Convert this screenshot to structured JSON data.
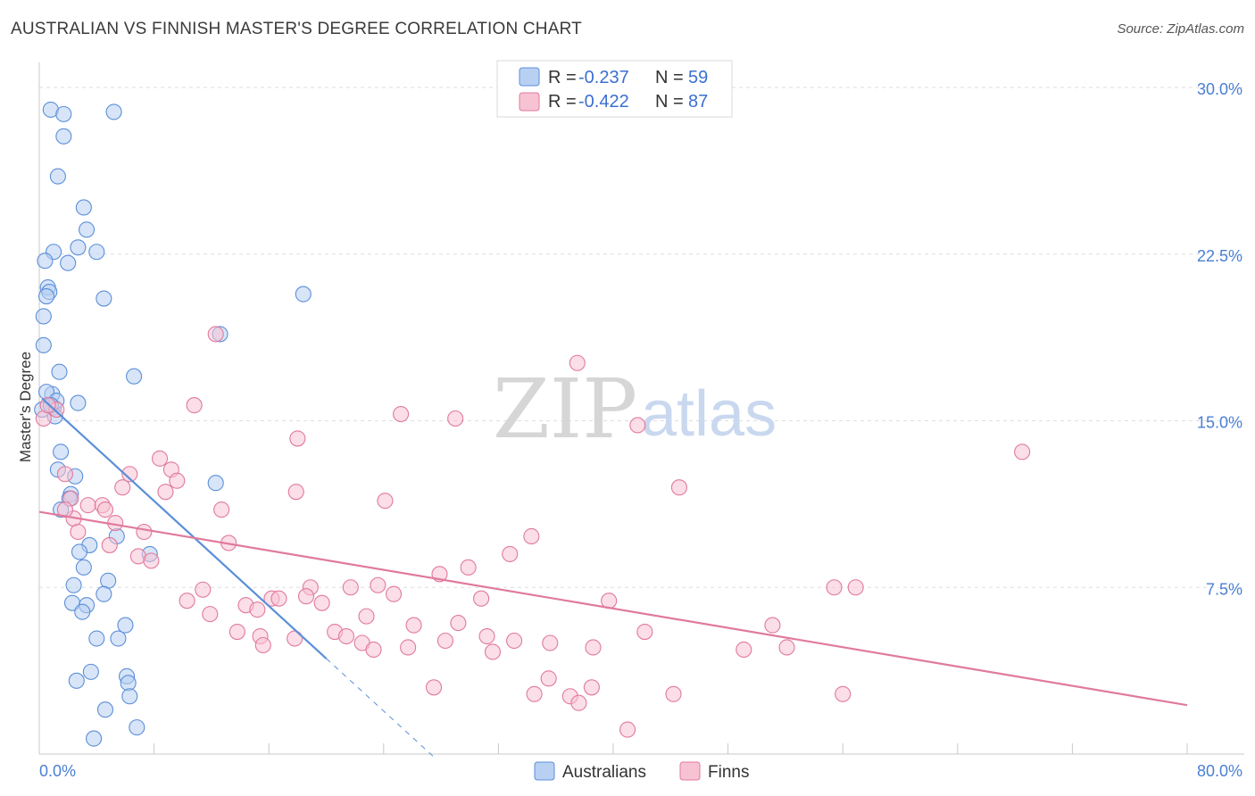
{
  "title": "AUSTRALIAN VS FINNISH MASTER'S DEGREE CORRELATION CHART",
  "source": "Source: ZipAtlas.com",
  "watermark": {
    "zip": "ZIP",
    "atlas": "atlas"
  },
  "legend": {
    "r_label": "R =",
    "n_label": "N =",
    "rows": [
      {
        "r": "-0.237",
        "n": "59",
        "color": "#5b8fd8",
        "fill": "#b8d0f2"
      },
      {
        "r": "-0.422",
        "n": "87",
        "color": "#e07a9c",
        "fill": "#f7c3d3"
      }
    ]
  },
  "chart_data": {
    "type": "scatter",
    "title": "AUSTRALIAN VS FINNISH MASTER'S DEGREE CORRELATION CHART",
    "xlabel": "",
    "ylabel": "Master's Degree",
    "xlim": [
      0,
      80
    ],
    "ylim": [
      0,
      30.7
    ],
    "x_tick_labels": [
      "0.0%",
      "80.0%"
    ],
    "y_ticks": [
      7.5,
      15.0,
      22.5,
      30.0
    ],
    "y_tick_labels": [
      "7.5%",
      "15.0%",
      "22.5%",
      "30.0%"
    ],
    "series": [
      {
        "name": "Australians",
        "color": "#5b8fd8",
        "fill": "#b8d0f2",
        "r": -0.237,
        "n": 59,
        "trend": {
          "x0": 0.2,
          "y0": 16.0,
          "x1": 20.0,
          "y1": 4.3,
          "dash_to_x": 27.5
        },
        "points": [
          [
            0.8,
            29.0
          ],
          [
            1.7,
            28.8
          ],
          [
            5.2,
            28.9
          ],
          [
            1.7,
            27.8
          ],
          [
            1.3,
            26.0
          ],
          [
            3.1,
            24.6
          ],
          [
            3.3,
            23.6
          ],
          [
            2.7,
            22.8
          ],
          [
            1.0,
            22.6
          ],
          [
            4.0,
            22.6
          ],
          [
            0.4,
            22.2
          ],
          [
            2.0,
            22.1
          ],
          [
            0.6,
            21.0
          ],
          [
            0.7,
            20.8
          ],
          [
            0.5,
            20.6
          ],
          [
            4.5,
            20.5
          ],
          [
            18.4,
            20.7
          ],
          [
            0.3,
            19.7
          ],
          [
            12.6,
            18.9
          ],
          [
            0.3,
            18.4
          ],
          [
            1.4,
            17.2
          ],
          [
            6.6,
            17.0
          ],
          [
            0.9,
            16.2
          ],
          [
            2.7,
            15.8
          ],
          [
            1.0,
            15.6
          ],
          [
            1.1,
            15.2
          ],
          [
            0.2,
            15.5
          ],
          [
            1.5,
            13.6
          ],
          [
            1.3,
            12.8
          ],
          [
            2.5,
            12.5
          ],
          [
            12.3,
            12.2
          ],
          [
            2.2,
            11.7
          ],
          [
            2.1,
            11.5
          ],
          [
            1.5,
            11.0
          ],
          [
            5.4,
            9.8
          ],
          [
            3.5,
            9.4
          ],
          [
            2.8,
            9.1
          ],
          [
            7.7,
            9.0
          ],
          [
            3.1,
            8.4
          ],
          [
            4.8,
            7.8
          ],
          [
            2.4,
            7.6
          ],
          [
            4.5,
            7.2
          ],
          [
            2.3,
            6.8
          ],
          [
            3.3,
            6.7
          ],
          [
            3.0,
            6.4
          ],
          [
            6.0,
            5.8
          ],
          [
            4.0,
            5.2
          ],
          [
            5.5,
            5.2
          ],
          [
            3.6,
            3.7
          ],
          [
            6.1,
            3.5
          ],
          [
            2.6,
            3.3
          ],
          [
            6.2,
            3.2
          ],
          [
            6.3,
            2.6
          ],
          [
            4.6,
            2.0
          ],
          [
            6.8,
            1.2
          ],
          [
            3.8,
            0.7
          ],
          [
            0.5,
            16.3
          ],
          [
            1.2,
            15.9
          ],
          [
            0.8,
            15.7
          ]
        ]
      },
      {
        "name": "Finns",
        "color": "#e07a9c",
        "fill": "#f7c3d3",
        "r": -0.422,
        "n": 87,
        "trend": {
          "x0": 0.0,
          "y0": 10.9,
          "x1": 80.0,
          "y1": 2.2
        },
        "points": [
          [
            0.3,
            15.1
          ],
          [
            1.2,
            15.5
          ],
          [
            12.3,
            18.9
          ],
          [
            37.5,
            17.6
          ],
          [
            10.8,
            15.7
          ],
          [
            25.2,
            15.3
          ],
          [
            29.0,
            15.1
          ],
          [
            41.7,
            14.8
          ],
          [
            18.0,
            14.2
          ],
          [
            68.5,
            13.6
          ],
          [
            8.4,
            13.3
          ],
          [
            9.2,
            12.8
          ],
          [
            6.3,
            12.6
          ],
          [
            1.8,
            12.6
          ],
          [
            9.6,
            12.3
          ],
          [
            5.8,
            12.0
          ],
          [
            44.6,
            12.0
          ],
          [
            8.8,
            11.8
          ],
          [
            17.9,
            11.8
          ],
          [
            24.1,
            11.4
          ],
          [
            3.4,
            11.2
          ],
          [
            4.4,
            11.2
          ],
          [
            4.6,
            11.0
          ],
          [
            12.7,
            11.0
          ],
          [
            2.4,
            10.6
          ],
          [
            5.3,
            10.4
          ],
          [
            2.7,
            10.0
          ],
          [
            7.3,
            10.0
          ],
          [
            34.3,
            9.8
          ],
          [
            13.2,
            9.5
          ],
          [
            4.9,
            9.4
          ],
          [
            32.8,
            9.0
          ],
          [
            6.9,
            8.9
          ],
          [
            7.8,
            8.7
          ],
          [
            29.9,
            8.4
          ],
          [
            27.9,
            8.1
          ],
          [
            23.6,
            7.6
          ],
          [
            18.9,
            7.5
          ],
          [
            21.7,
            7.5
          ],
          [
            55.4,
            7.5
          ],
          [
            56.9,
            7.5
          ],
          [
            11.4,
            7.4
          ],
          [
            24.7,
            7.2
          ],
          [
            18.6,
            7.1
          ],
          [
            16.2,
            7.0
          ],
          [
            16.7,
            7.0
          ],
          [
            30.8,
            7.0
          ],
          [
            39.7,
            6.9
          ],
          [
            10.3,
            6.9
          ],
          [
            19.7,
            6.8
          ],
          [
            14.4,
            6.7
          ],
          [
            15.2,
            6.5
          ],
          [
            11.9,
            6.3
          ],
          [
            22.8,
            6.2
          ],
          [
            29.2,
            5.9
          ],
          [
            26.1,
            5.8
          ],
          [
            51.1,
            5.8
          ],
          [
            20.6,
            5.5
          ],
          [
            21.4,
            5.3
          ],
          [
            13.8,
            5.5
          ],
          [
            15.4,
            5.3
          ],
          [
            31.2,
            5.3
          ],
          [
            17.8,
            5.2
          ],
          [
            22.5,
            5.0
          ],
          [
            28.3,
            5.1
          ],
          [
            33.1,
            5.1
          ],
          [
            35.6,
            5.0
          ],
          [
            42.2,
            5.5
          ],
          [
            23.3,
            4.7
          ],
          [
            25.7,
            4.8
          ],
          [
            31.6,
            4.6
          ],
          [
            38.6,
            4.8
          ],
          [
            49.1,
            4.7
          ],
          [
            52.1,
            4.8
          ],
          [
            15.6,
            4.9
          ],
          [
            35.5,
            3.4
          ],
          [
            27.5,
            3.0
          ],
          [
            38.5,
            3.0
          ],
          [
            34.5,
            2.7
          ],
          [
            37.0,
            2.6
          ],
          [
            44.2,
            2.7
          ],
          [
            56.0,
            2.7
          ],
          [
            37.6,
            2.3
          ],
          [
            41.0,
            1.1
          ],
          [
            2.2,
            11.5
          ],
          [
            1.8,
            11.0
          ],
          [
            0.6,
            15.7
          ]
        ]
      }
    ]
  },
  "bottom_legend": [
    {
      "label": "Australians",
      "color": "#5b8fd8",
      "fill": "#b8d0f2"
    },
    {
      "label": "Finns",
      "color": "#e07a9c",
      "fill": "#f7c3d3"
    }
  ]
}
